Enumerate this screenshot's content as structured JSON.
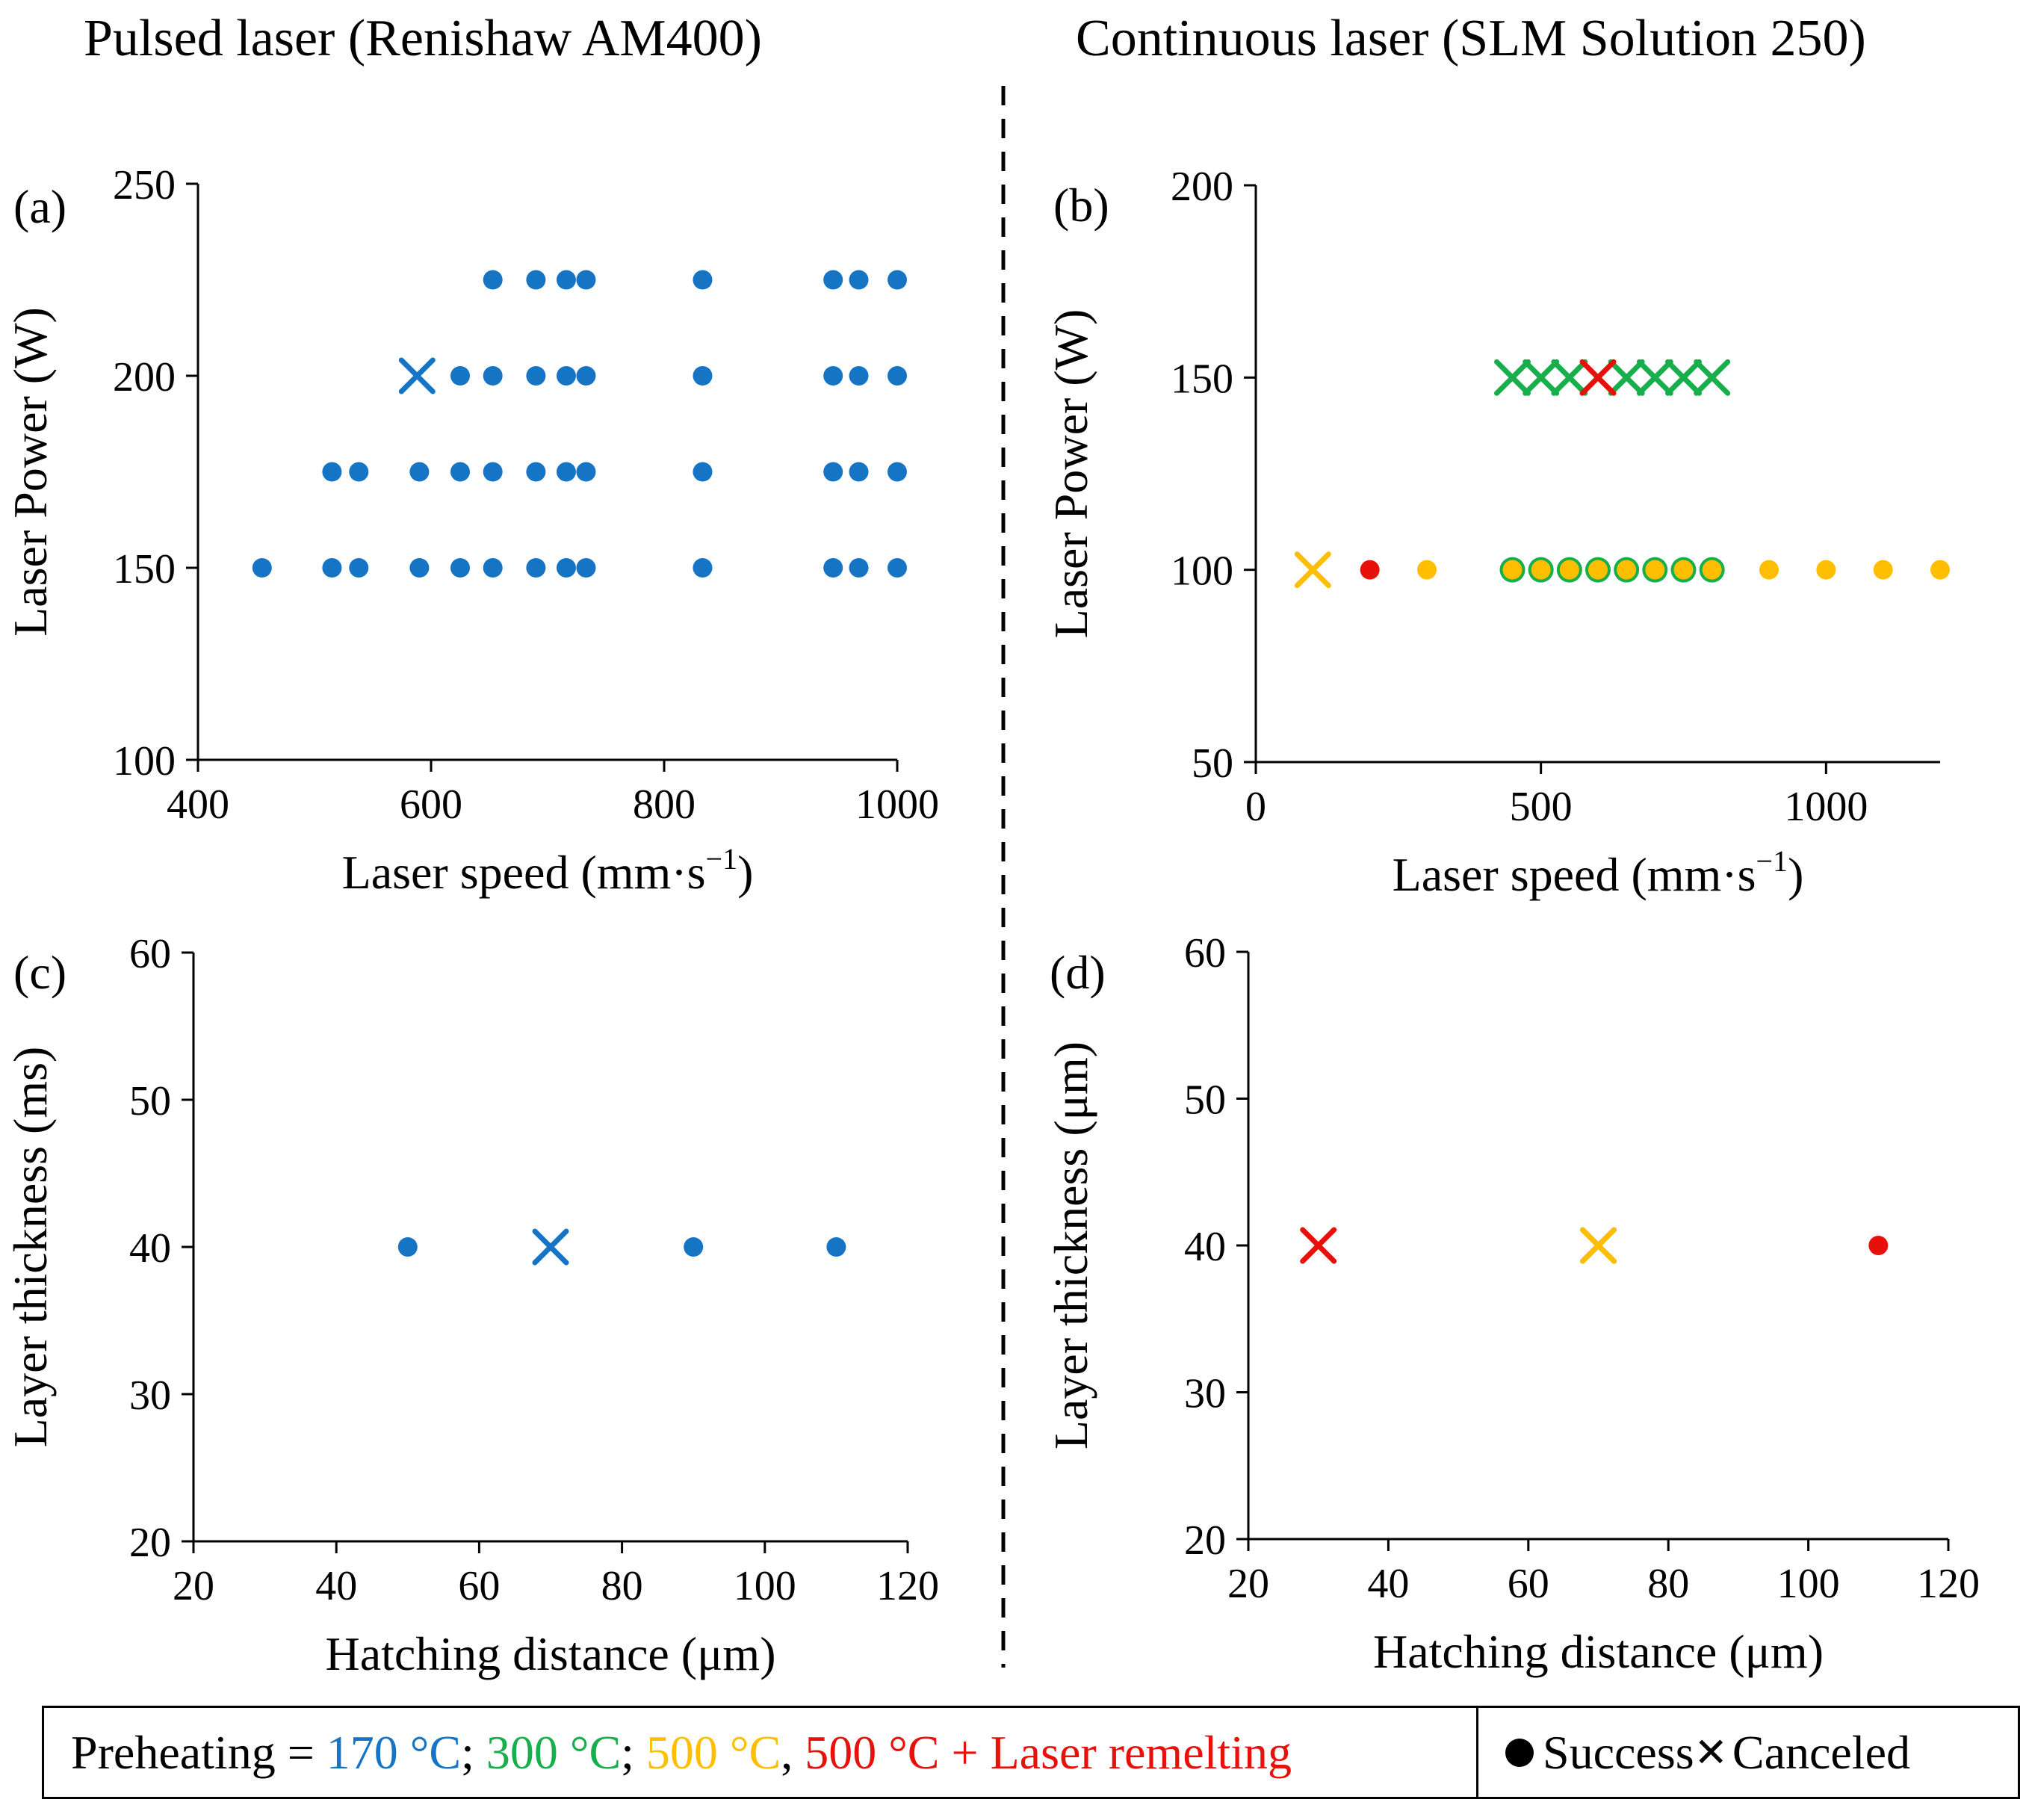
{
  "headers": {
    "left": "Pulsed laser (Renishaw AM400)",
    "right": "Continuous laser (SLM Solution 250)"
  },
  "colors": {
    "c170": "#1674c4",
    "c300": "#18ae4c",
    "c500": "#ffbf00",
    "c500r": "#e8100a"
  },
  "legend": {
    "prefix": "Preheating = ",
    "t170": "170 °C",
    "sep1": "; ",
    "t300": "300 °C",
    "sep2": "; ",
    "t500": "500 °C",
    "sep3": ", ",
    "t500r": "500 °C + Laser remelting",
    "success": "Success",
    "canceled": "Canceled"
  },
  "chart_data": [
    {
      "id": "a",
      "panel_label": "(a)",
      "type": "scatter",
      "xlabel": "Laser speed (mm·s",
      "xlabel_sup": "−1",
      "xlabel_end": ")",
      "ylabel": "Laser Power (W)",
      "xlim": [
        400,
        1000
      ],
      "ylim": [
        100,
        250
      ],
      "xticks": [
        "400",
        "600",
        "800",
        "1000"
      ],
      "xtick_values": [
        400,
        600,
        800,
        1000
      ],
      "yticks": [
        "100",
        "150",
        "200",
        "250"
      ],
      "ytick_values": [
        100,
        150,
        200,
        250
      ],
      "series": [
        {
          "name": "170 °C",
          "color_key": "c170",
          "marker": "circle",
          "points": [
            [
              455,
              150
            ],
            [
              515,
              150
            ],
            [
              538,
              150
            ],
            [
              590,
              150
            ],
            [
              625,
              150
            ],
            [
              653,
              150
            ],
            [
              690,
              150
            ],
            [
              716,
              150
            ],
            [
              733,
              150
            ],
            [
              833,
              150
            ],
            [
              945,
              150
            ],
            [
              967,
              150
            ],
            [
              1000,
              150
            ],
            [
              515,
              175
            ],
            [
              538,
              175
            ],
            [
              590,
              175
            ],
            [
              625,
              175
            ],
            [
              653,
              175
            ],
            [
              690,
              175
            ],
            [
              716,
              175
            ],
            [
              733,
              175
            ],
            [
              833,
              175
            ],
            [
              945,
              175
            ],
            [
              967,
              175
            ],
            [
              1000,
              175
            ],
            [
              625,
              200
            ],
            [
              653,
              200
            ],
            [
              690,
              200
            ],
            [
              716,
              200
            ],
            [
              733,
              200
            ],
            [
              833,
              200
            ],
            [
              945,
              200
            ],
            [
              967,
              200
            ],
            [
              1000,
              200
            ],
            [
              653,
              225
            ],
            [
              690,
              225
            ],
            [
              716,
              225
            ],
            [
              733,
              225
            ],
            [
              833,
              225
            ],
            [
              945,
              225
            ],
            [
              967,
              225
            ],
            [
              1000,
              225
            ]
          ]
        },
        {
          "name": "170 °C canceled",
          "color_key": "c170",
          "marker": "cross",
          "points": [
            [
              588,
              200
            ]
          ]
        }
      ]
    },
    {
      "id": "b",
      "panel_label": "(b)",
      "type": "scatter",
      "xlabel": "Laser speed (mm·s",
      "xlabel_sup": "−1",
      "xlabel_end": ")",
      "ylabel": "Laser Power (W)",
      "xlim": [
        0,
        1200
      ],
      "ylim": [
        50,
        200
      ],
      "xticks": [
        "0",
        "500",
        "1000"
      ],
      "xtick_values": [
        0,
        500,
        1000
      ],
      "yticks": [
        "50",
        "100",
        "150",
        "200"
      ],
      "ytick_values": [
        50,
        100,
        150,
        200
      ],
      "series": [
        {
          "name": "300 °C canceled",
          "color_key": "c300",
          "marker": "cross",
          "points": [
            [
              450,
              150
            ],
            [
              500,
              150
            ],
            [
              550,
              150
            ],
            [
              650,
              150
            ],
            [
              700,
              150
            ],
            [
              750,
              150
            ],
            [
              800,
              150
            ]
          ]
        },
        {
          "name": "500 °C + laser remelting canceled",
          "color_key": "c500r",
          "marker": "cross",
          "points": [
            [
              600,
              150
            ]
          ]
        },
        {
          "name": "300 °C",
          "color_key": "c300",
          "marker": "circle-big",
          "points": [
            [
              450,
              100
            ],
            [
              500,
              100
            ],
            [
              550,
              100
            ],
            [
              600,
              100
            ],
            [
              650,
              100
            ],
            [
              700,
              100
            ],
            [
              750,
              100
            ],
            [
              800,
              100
            ]
          ]
        },
        {
          "name": "500 °C",
          "color_key": "c500",
          "marker": "circle",
          "points": [
            [
              300,
              100
            ],
            [
              450,
              100
            ],
            [
              500,
              100
            ],
            [
              550,
              100
            ],
            [
              600,
              100
            ],
            [
              650,
              100
            ],
            [
              700,
              100
            ],
            [
              750,
              100
            ],
            [
              800,
              100
            ],
            [
              900,
              100
            ],
            [
              1000,
              100
            ],
            [
              1100,
              100
            ],
            [
              1200,
              100
            ]
          ]
        },
        {
          "name": "500 °C + laser remelting",
          "color_key": "c500r",
          "marker": "circle",
          "points": [
            [
              200,
              100
            ]
          ]
        },
        {
          "name": "500 °C canceled",
          "color_key": "c500",
          "marker": "cross",
          "points": [
            [
              100,
              100
            ]
          ]
        }
      ]
    },
    {
      "id": "c",
      "panel_label": "(c)",
      "type": "scatter",
      "xlabel": "Hatching distance (μm)",
      "ylabel": "Layer thickness (ms)",
      "xlim": [
        20,
        120
      ],
      "ylim": [
        20,
        60
      ],
      "xticks": [
        "20",
        "40",
        "60",
        "80",
        "100",
        "120"
      ],
      "xtick_values": [
        20,
        40,
        60,
        80,
        100,
        120
      ],
      "yticks": [
        "20",
        "30",
        "40",
        "50",
        "60"
      ],
      "ytick_values": [
        20,
        30,
        40,
        50,
        60
      ],
      "series": [
        {
          "name": "170 °C",
          "color_key": "c170",
          "marker": "circle",
          "points": [
            [
              50,
              40
            ],
            [
              90,
              40
            ],
            [
              110,
              40
            ]
          ]
        },
        {
          "name": "170 °C canceled",
          "color_key": "c170",
          "marker": "cross",
          "points": [
            [
              70,
              40
            ]
          ]
        }
      ]
    },
    {
      "id": "d",
      "panel_label": "(d)",
      "type": "scatter",
      "xlabel": "Hatching distance (μm)",
      "ylabel": "Layer thickness (μm)",
      "xlim": [
        20,
        120
      ],
      "ylim": [
        20,
        60
      ],
      "xticks": [
        "20",
        "40",
        "60",
        "80",
        "100",
        "120"
      ],
      "xtick_values": [
        20,
        40,
        60,
        80,
        100,
        120
      ],
      "yticks": [
        "20",
        "30",
        "40",
        "50",
        "60"
      ],
      "ytick_values": [
        20,
        30,
        40,
        50,
        60
      ],
      "series": [
        {
          "name": "500 °C + laser remelting canceled",
          "color_key": "c500r",
          "marker": "cross",
          "points": [
            [
              30,
              40
            ]
          ]
        },
        {
          "name": "300 °C canceled",
          "color_key": "c300",
          "marker": "cross",
          "points": [
            [
              70,
              40
            ]
          ]
        },
        {
          "name": "500 °C canceled",
          "color_key": "c500",
          "marker": "cross",
          "points": [
            [
              70,
              40
            ]
          ]
        },
        {
          "name": "500 °C + laser remelting",
          "color_key": "c500r",
          "marker": "circle",
          "points": [
            [
              110,
              40
            ]
          ]
        }
      ]
    }
  ]
}
